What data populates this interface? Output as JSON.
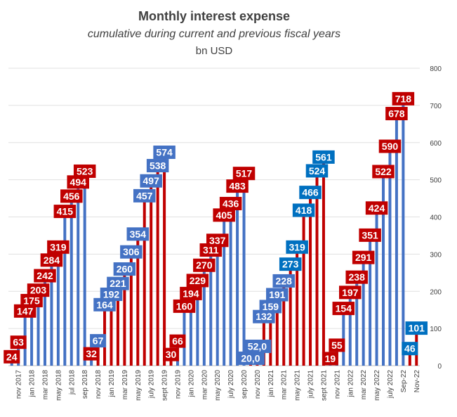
{
  "chart_data": {
    "type": "bar",
    "title": "Monthly interest expense",
    "subtitle": "cumulative during current and previous fiscal years",
    "ylabel": "bn USD",
    "ylim": [
      0,
      800
    ],
    "yticks": [
      0,
      100,
      200,
      300,
      400,
      500,
      600,
      700,
      800
    ],
    "grid": true,
    "legend": "none",
    "colors": {
      "blue": "#4472c4",
      "red": "#c00000",
      "teal": "#0070c0"
    },
    "x_tick_labels": [
      "nov 2017",
      "jan 2018",
      "mar 2018",
      "may 2018",
      "jul 2018",
      "sep 2018",
      "nov 2018",
      "jan 2019",
      "mar 2019",
      "may 2019",
      "july 2019",
      "sept 2019",
      "nov 2019",
      "jan 2020",
      "mar 2020",
      "may 2020",
      "july 2020",
      "sep 2020",
      "nov 2020",
      "jan 2021",
      "mar 2021",
      "may 2021",
      "july 2021",
      "sept 2021",
      "nov 2021",
      "jan 2022",
      "mar 2022",
      "may 2022",
      "july 2022",
      "Sep-22",
      "Nov-22"
    ],
    "bars": [
      {
        "value": 24,
        "label": "24",
        "color": "blue",
        "label_color": "red"
      },
      {
        "value": 63,
        "label": "63",
        "color": "blue",
        "label_color": "red"
      },
      {
        "value": 147,
        "label": "147",
        "color": "blue",
        "label_color": "red"
      },
      {
        "value": 175,
        "label": "175",
        "color": "blue",
        "label_color": "red"
      },
      {
        "value": 203,
        "label": "203",
        "color": "blue",
        "label_color": "red"
      },
      {
        "value": 242,
        "label": "242",
        "color": "blue",
        "label_color": "red"
      },
      {
        "value": 284,
        "label": "284",
        "color": "blue",
        "label_color": "red"
      },
      {
        "value": 319,
        "label": "319",
        "color": "blue",
        "label_color": "red"
      },
      {
        "value": 415,
        "label": "415",
        "color": "blue",
        "label_color": "red"
      },
      {
        "value": 456,
        "label": "456",
        "color": "blue",
        "label_color": "red"
      },
      {
        "value": 494,
        "label": "494",
        "color": "blue",
        "label_color": "red"
      },
      {
        "value": 523,
        "label": "523",
        "color": "blue",
        "label_color": "red"
      },
      {
        "value": 32,
        "label": "32",
        "color": "blue",
        "label_color": "red"
      },
      {
        "value": 67,
        "label": "67",
        "color": "red",
        "label_color": "blue"
      },
      {
        "value": 164,
        "label": "164",
        "color": "red",
        "label_color": "blue"
      },
      {
        "value": 192,
        "label": "192",
        "color": "red",
        "label_color": "blue"
      },
      {
        "value": 221,
        "label": "221",
        "color": "red",
        "label_color": "blue"
      },
      {
        "value": 260,
        "label": "260",
        "color": "red",
        "label_color": "blue"
      },
      {
        "value": 306,
        "label": "306",
        "color": "red",
        "label_color": "blue"
      },
      {
        "value": 354,
        "label": "354",
        "color": "red",
        "label_color": "blue"
      },
      {
        "value": 457,
        "label": "457",
        "color": "red",
        "label_color": "blue"
      },
      {
        "value": 497,
        "label": "497",
        "color": "red",
        "label_color": "blue"
      },
      {
        "value": 538,
        "label": "538",
        "color": "red",
        "label_color": "blue"
      },
      {
        "value": 574,
        "label": "574",
        "color": "red",
        "label_color": "blue"
      },
      {
        "value": 30,
        "label": "30",
        "color": "red",
        "label_color": "red"
      },
      {
        "value": 66,
        "label": "66",
        "color": "blue",
        "label_color": "red"
      },
      {
        "value": 160,
        "label": "160",
        "color": "blue",
        "label_color": "red"
      },
      {
        "value": 194,
        "label": "194",
        "color": "blue",
        "label_color": "red"
      },
      {
        "value": 229,
        "label": "229",
        "color": "blue",
        "label_color": "red"
      },
      {
        "value": 270,
        "label": "270",
        "color": "blue",
        "label_color": "red"
      },
      {
        "value": 311,
        "label": "311",
        "color": "blue",
        "label_color": "red"
      },
      {
        "value": 337,
        "label": "337",
        "color": "blue",
        "label_color": "red"
      },
      {
        "value": 405,
        "label": "405",
        "color": "blue",
        "label_color": "red"
      },
      {
        "value": 436,
        "label": "436",
        "color": "blue",
        "label_color": "red"
      },
      {
        "value": 483,
        "label": "483",
        "color": "blue",
        "label_color": "red"
      },
      {
        "value": 517,
        "label": "517",
        "color": "blue",
        "label_color": "red"
      },
      {
        "value": 20,
        "label": "20,0",
        "color": "red",
        "label_color": "blue"
      },
      {
        "value": 52,
        "label": "52,0",
        "color": "red",
        "label_color": "blue"
      },
      {
        "value": 132,
        "label": "132",
        "color": "red",
        "label_color": "blue"
      },
      {
        "value": 159,
        "label": "159",
        "color": "red",
        "label_color": "blue"
      },
      {
        "value": 191,
        "label": "191",
        "color": "red",
        "label_color": "blue"
      },
      {
        "value": 228,
        "label": "228",
        "color": "red",
        "label_color": "blue"
      },
      {
        "value": 273,
        "label": "273",
        "color": "red",
        "label_color": "teal"
      },
      {
        "value": 319,
        "label": "319",
        "color": "red",
        "label_color": "teal"
      },
      {
        "value": 418,
        "label": "418",
        "color": "red",
        "label_color": "teal"
      },
      {
        "value": 466,
        "label": "466",
        "color": "red",
        "label_color": "teal"
      },
      {
        "value": 524,
        "label": "524",
        "color": "red",
        "label_color": "teal"
      },
      {
        "value": 561,
        "label": "561",
        "color": "red",
        "label_color": "teal"
      },
      {
        "value": 19,
        "label": "19",
        "color": "blue",
        "label_color": "red"
      },
      {
        "value": 55,
        "label": "55",
        "color": "blue",
        "label_color": "red"
      },
      {
        "value": 154,
        "label": "154",
        "color": "blue",
        "label_color": "red"
      },
      {
        "value": 197,
        "label": "197",
        "color": "blue",
        "label_color": "red"
      },
      {
        "value": 238,
        "label": "238",
        "color": "blue",
        "label_color": "red"
      },
      {
        "value": 291,
        "label": "291",
        "color": "blue",
        "label_color": "red"
      },
      {
        "value": 351,
        "label": "351",
        "color": "blue",
        "label_color": "red"
      },
      {
        "value": 424,
        "label": "424",
        "color": "blue",
        "label_color": "red"
      },
      {
        "value": 522,
        "label": "522",
        "color": "blue",
        "label_color": "red"
      },
      {
        "value": 590,
        "label": "590",
        "color": "blue",
        "label_color": "red"
      },
      {
        "value": 678,
        "label": "678",
        "color": "blue",
        "label_color": "red"
      },
      {
        "value": 718,
        "label": "718",
        "color": "blue",
        "label_color": "red"
      },
      {
        "value": 46,
        "label": "46",
        "color": "red",
        "label_color": "teal"
      },
      {
        "value": 101,
        "label": "101",
        "color": "red",
        "label_color": "teal"
      }
    ]
  }
}
